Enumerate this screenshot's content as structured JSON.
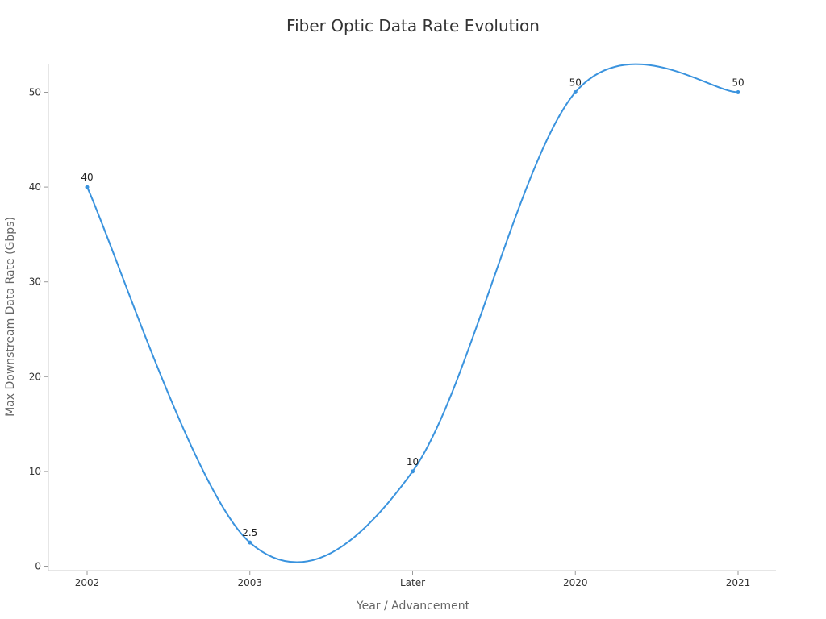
{
  "chart_data": {
    "type": "line",
    "title": "Fiber Optic Data Rate Evolution",
    "xlabel": "Year / Advancement",
    "ylabel": "Max Downstream Data Rate (Gbps)",
    "categories": [
      "2002",
      "2003",
      "Later",
      "2020",
      "2021"
    ],
    "series": [
      {
        "values": [
          40,
          2.5,
          10,
          50,
          50
        ],
        "data_labels": [
          "40",
          "2.5",
          "10",
          "50",
          "50"
        ]
      }
    ],
    "ylim": [
      0,
      53
    ],
    "yticks": [
      0,
      10,
      20,
      30,
      40,
      50
    ],
    "grid": false,
    "legend": "none",
    "line_color": "#3a93de",
    "axis_color": "#cccccc"
  }
}
